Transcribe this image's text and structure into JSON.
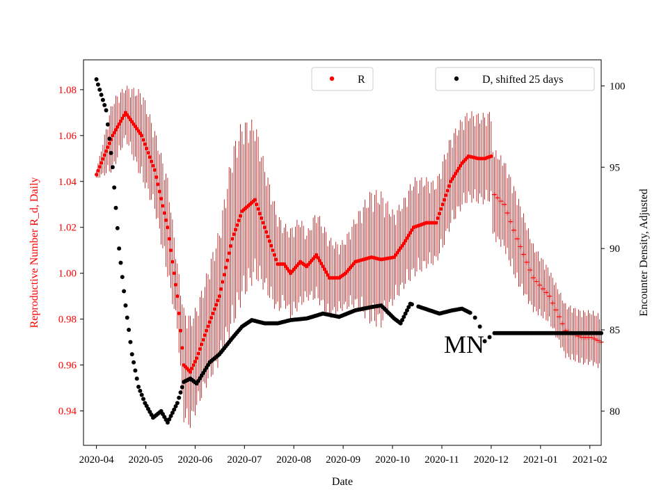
{
  "chart_data": {
    "type": "scatter",
    "xlabel": "Date",
    "ylabel_left": "Reproductive Number R_d, Daily",
    "ylabel_right": "Encounter Density, Adjusted",
    "x_ticks": [
      "2020-04",
      "2020-05",
      "2020-06",
      "2020-07",
      "2020-08",
      "2020-09",
      "2020-10",
      "2020-11",
      "2020-12",
      "2021-01",
      "2021-02"
    ],
    "xlim_days": [
      -8,
      312
    ],
    "ylim_left": [
      0.925,
      1.093
    ],
    "ylim_right": [
      77.9,
      101.6
    ],
    "y_ticks_left": [
      "0.94",
      "0.96",
      "0.98",
      "1.00",
      "1.02",
      "1.04",
      "1.06",
      "1.08"
    ],
    "y_ticks_right": [
      "80",
      "85",
      "90",
      "95",
      "100"
    ],
    "colors": {
      "R": "#ff0000",
      "R_err": "#b30000",
      "D": "#000000",
      "axes": "#000000"
    },
    "annotation": "MN",
    "legend": [
      {
        "label": "R",
        "marker": "dot",
        "color": "#ff0000",
        "placement": "top-center"
      },
      {
        "label": "D, shifted 25 days",
        "marker": "dot",
        "color": "#000000",
        "placement": "top-right"
      }
    ],
    "series": [
      {
        "name": "R",
        "axis": "left",
        "marker": "dot",
        "x_days": [
          0,
          10,
          18,
          28,
          36,
          44,
          50,
          54,
          58,
          62,
          68,
          76,
          84,
          90,
          98,
          104,
          112,
          116,
          120,
          126,
          130,
          136,
          144,
          150,
          154,
          160,
          170,
          176,
          184,
          190,
          196,
          204,
          210,
          214,
          219,
          226,
          230,
          236,
          240,
          244
        ],
        "values": [
          1.043,
          1.06,
          1.07,
          1.06,
          1.045,
          1.02,
          0.99,
          0.96,
          0.957,
          0.963,
          0.975,
          0.99,
          1.015,
          1.027,
          1.032,
          1.02,
          1.004,
          1.004,
          1.0,
          1.005,
          1.003,
          1.008,
          0.998,
          0.998,
          1.0,
          1.005,
          1.007,
          1.006,
          1.007,
          1.013,
          1.02,
          1.022,
          1.022,
          1.03,
          1.04,
          1.048,
          1.051,
          1.05,
          1.05,
          1.051
        ],
        "err": [
          0.002,
          0.016,
          0.012,
          0.02,
          0.018,
          0.022,
          0.015,
          0.025,
          0.025,
          0.023,
          0.025,
          0.03,
          0.04,
          0.04,
          0.035,
          0.028,
          0.022,
          0.018,
          0.02,
          0.02,
          0.015,
          0.02,
          0.018,
          0.015,
          0.016,
          0.02,
          0.03,
          0.03,
          0.02,
          0.02,
          0.022,
          0.02,
          0.018,
          0.02,
          0.02,
          0.02,
          0.02,
          0.02,
          0.02,
          0.02
        ]
      },
      {
        "name": "R (projected)",
        "axis": "left",
        "marker": "plus",
        "x_days": [
          245,
          252,
          260,
          270,
          280,
          290,
          300,
          306,
          312
        ],
        "values": [
          1.035,
          1.03,
          1.015,
          0.998,
          0.99,
          0.975,
          0.972,
          0.972,
          0.97
        ],
        "err": [
          0.02,
          0.02,
          0.02,
          0.015,
          0.012,
          0.012,
          0.012,
          0.012,
          0.012
        ]
      },
      {
        "name": "D, shifted 25 days",
        "axis": "right",
        "marker": "dot",
        "x_days": [
          0,
          6,
          10,
          14,
          18,
          22,
          26,
          30,
          35,
          40,
          44,
          50,
          54,
          58,
          62,
          70,
          76,
          84,
          90,
          96,
          104,
          112,
          120,
          130,
          140,
          150,
          160,
          170,
          176,
          184,
          188,
          194,
          200,
          206,
          212,
          220,
          226,
          232,
          236,
          240,
          246,
          252,
          260,
          270,
          290,
          312
        ],
        "values": [
          100.4,
          98.5,
          95,
          90,
          86.5,
          83.5,
          81.5,
          80.5,
          79.6,
          80,
          79.3,
          80.5,
          81.8,
          82,
          81.7,
          83,
          83.5,
          84.5,
          85.2,
          85.6,
          85.4,
          85.4,
          85.6,
          85.7,
          86,
          85.8,
          86.2,
          86.4,
          86.5,
          85.7,
          85.4,
          86.6,
          86.4,
          86.2,
          86,
          86.2,
          86.3,
          86,
          85.5,
          84.3,
          84.8,
          84.8,
          84.8,
          84.8,
          84.8,
          84.8
        ]
      }
    ]
  }
}
